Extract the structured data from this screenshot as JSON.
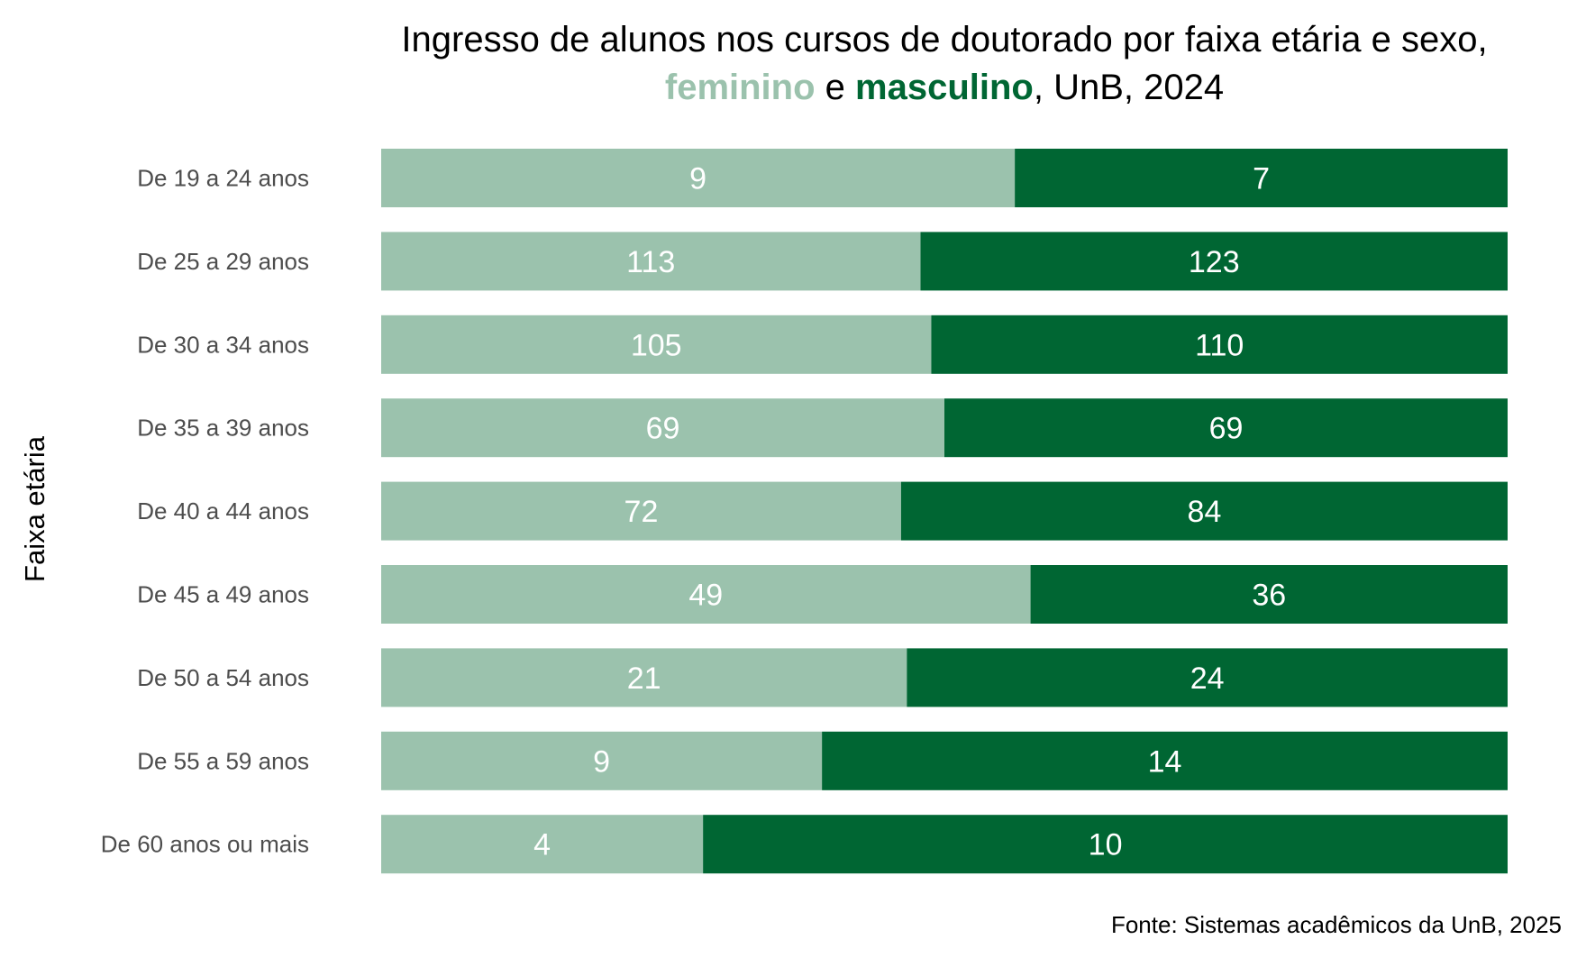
{
  "chart_data": {
    "type": "bar",
    "orientation": "horizontal",
    "stacking": "percent",
    "title": {
      "line1": "Ingresso de alunos nos cursos de doutorado por faixa etária e sexo,",
      "line2_prefix": "",
      "line2_feminino": "feminino",
      "line2_mid": " e ",
      "line2_masculino": "masculino",
      "line2_suffix": ", UnB, 2024"
    },
    "ylabel": "Faixa etária",
    "xlabel": "",
    "caption": "Fonte: Sistemas acadêmicos da UnB, 2025",
    "categories": [
      "De 19 a 24 anos",
      "De 25 a 29 anos",
      "De 30 a 34 anos",
      "De 35 a 39 anos",
      "De 40 a 44 anos",
      "De 45 a 49 anos",
      "De 50 a 54 anos",
      "De 55 a 59 anos",
      "De 60 anos ou mais"
    ],
    "series": [
      {
        "name": "feminino",
        "color": "#9bc2ad",
        "values": [
          9,
          113,
          105,
          69,
          72,
          49,
          21,
          9,
          4
        ]
      },
      {
        "name": "masculino",
        "color": "#006633",
        "values": [
          7,
          123,
          110,
          69,
          84,
          36,
          24,
          14,
          10
        ]
      }
    ],
    "grid": false,
    "legend": "none"
  }
}
